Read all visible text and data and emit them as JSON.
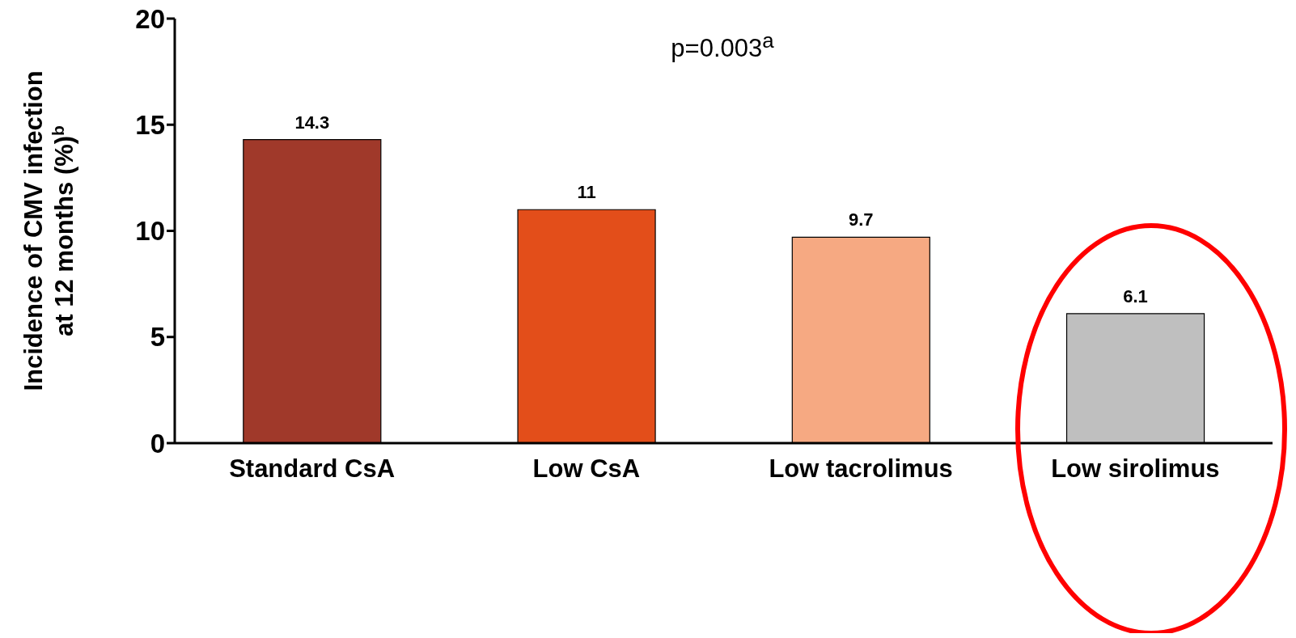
{
  "chart_data": {
    "type": "bar",
    "ylabel": "Incidence of CMV infection\nat 12 months (%)$^{b}$",
    "categories": [
      "Standard CsA",
      "Low CsA",
      "Low tacrolimus",
      "Low sirolimus"
    ],
    "values": [
      14.3,
      11,
      9.7,
      6.1
    ],
    "colors": [
      "#a0392a",
      "#e34e1a",
      "#f6a982",
      "#bfbfbf"
    ],
    "ylim": [
      0,
      20
    ],
    "yticks": [
      0,
      5,
      10,
      15,
      20
    ],
    "data_labels": true,
    "grid": false,
    "legend": false,
    "annotations": [
      "p=0.003$^{a}$"
    ]
  }
}
